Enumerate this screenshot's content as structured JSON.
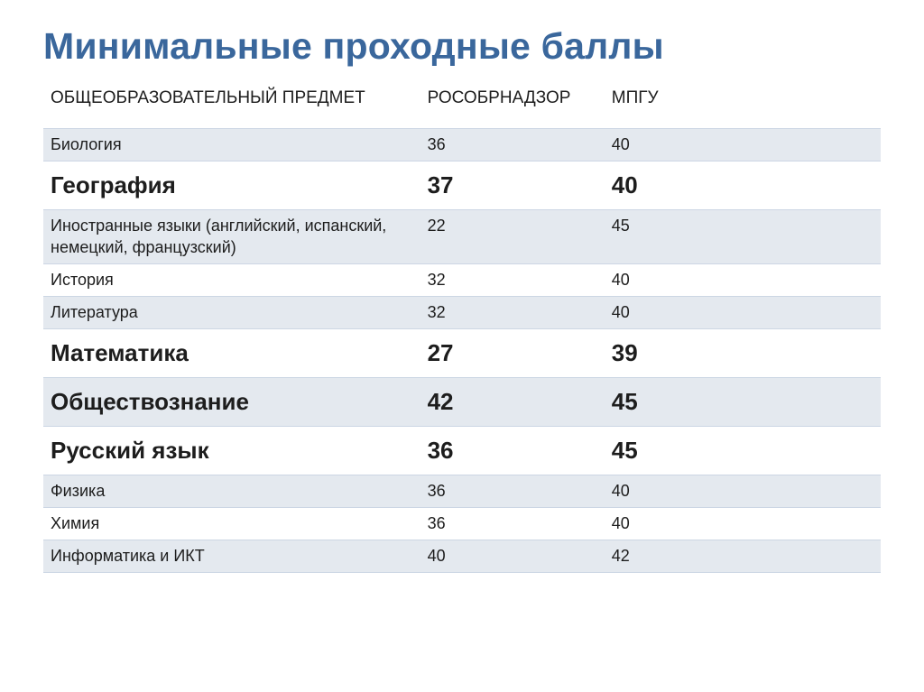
{
  "title": "Минимальные проходные баллы",
  "table": {
    "columns": [
      "ОБЩЕОБРАЗОВАТЕЛЬНЫЙ ПРЕДМЕТ",
      "РОСОБРНАДЗОР",
      "МПГУ"
    ],
    "col_widths_pct": [
      45,
      22,
      33
    ],
    "rows": [
      {
        "subject": "Биология",
        "rosobr": "36",
        "mpgu": "40",
        "emph": false,
        "alt": true
      },
      {
        "subject": "География",
        "rosobr": "37",
        "mpgu": "40",
        "emph": true,
        "alt": false
      },
      {
        "subject": "Иностранные языки (английский, испанский, немецкий, французский)",
        "rosobr": "22",
        "mpgu": "45",
        "emph": false,
        "alt": true
      },
      {
        "subject": "История",
        "rosobr": "32",
        "mpgu": "40",
        "emph": false,
        "alt": false
      },
      {
        "subject": "Литература",
        "rosobr": "32",
        "mpgu": "40",
        "emph": false,
        "alt": true
      },
      {
        "subject": "Математика",
        "rosobr": "27",
        "mpgu": "39",
        "emph": true,
        "alt": false
      },
      {
        "subject": "Обществознание",
        "rosobr": "42",
        "mpgu": "45",
        "emph": true,
        "alt": true
      },
      {
        "subject": "Русский язык",
        "rosobr": "36",
        "mpgu": "45",
        "emph": true,
        "alt": false
      },
      {
        "subject": "Физика",
        "rosobr": "36",
        "mpgu": "40",
        "emph": false,
        "alt": true
      },
      {
        "subject": "Химия",
        "rosobr": "36",
        "mpgu": "40",
        "emph": false,
        "alt": false
      },
      {
        "subject": "Информатика и ИКТ",
        "rosobr": "40",
        "mpgu": "42",
        "emph": false,
        "alt": true
      }
    ]
  },
  "style": {
    "title_color": "#3a679c",
    "title_fontsize": 41,
    "title_fontweight": 700,
    "row_alt_bg": "#e4e9ef",
    "row_border_color": "#ccd6e4",
    "text_color": "#1d1d1d",
    "header_fontsize": 19,
    "cell_fontsize": 18,
    "emph_fontsize": 26,
    "emph_fontweight": 700,
    "background_color": "#ffffff",
    "font_family": "Arial"
  }
}
